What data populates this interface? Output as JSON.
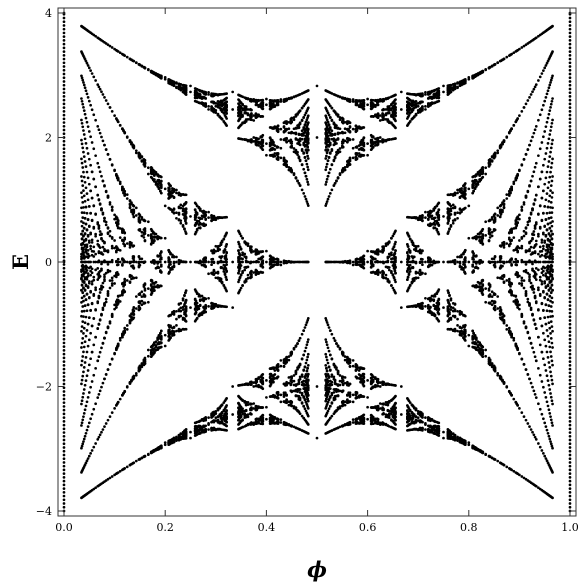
{
  "chart_data": {
    "type": "scatter",
    "title": "",
    "xlabel": "ϕ",
    "ylabel": "E",
    "xlim": [
      0,
      1
    ],
    "ylim": [
      -4,
      4
    ],
    "x_ticks": [
      0.0,
      0.2,
      0.4,
      0.6,
      0.8,
      1.0
    ],
    "x_tick_labels": [
      "0.0",
      "0.2",
      "0.4",
      "0.6",
      "0.8",
      "1.0"
    ],
    "y_ticks": [
      -4,
      -2,
      0,
      2,
      4
    ],
    "y_tick_labels": [
      "−4",
      "−2",
      "0",
      "2",
      "4"
    ],
    "grid": false,
    "legend": "none",
    "marker_color": "#000000",
    "series": [
      {
        "description": "Hofstadter butterfly energy spectrum: eigenvalues of Harper equation at rational flux ϕ = p/q",
        "max_denominator_q": 29
      }
    ]
  }
}
